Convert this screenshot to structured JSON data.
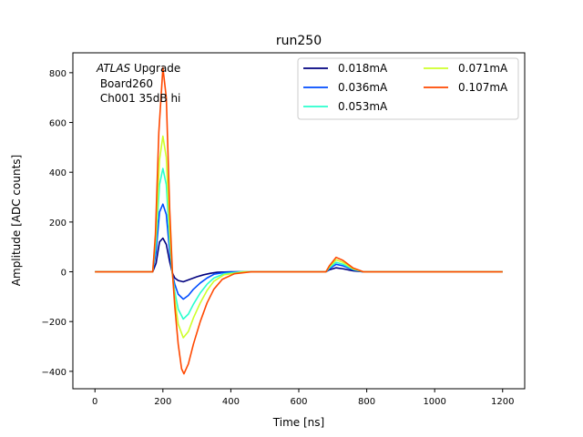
{
  "chart_data": {
    "type": "line",
    "title": "run250",
    "xlabel": "Time [ns]",
    "ylabel": "Amplitude [ADC counts]",
    "xlim": [
      -65,
      1265
    ],
    "ylim": [
      -470,
      880
    ],
    "xticks": [
      0,
      200,
      400,
      600,
      800,
      1000,
      1200
    ],
    "yticks": [
      -400,
      -200,
      0,
      200,
      400,
      600,
      800
    ],
    "grid": false,
    "legend_position": "top-right",
    "legend_columns": 2,
    "annotation": {
      "italic_part": "ATLAS",
      "rest": " Upgrade",
      "line2": " Board260",
      "line3": " Ch001 35dB hi"
    },
    "series": [
      {
        "name": "0.018mA",
        "color": "#00007f",
        "points": [
          [
            0,
            0
          ],
          [
            170,
            0
          ],
          [
            180,
            35
          ],
          [
            190,
            120
          ],
          [
            200,
            135
          ],
          [
            210,
            110
          ],
          [
            220,
            40
          ],
          [
            228,
            -5
          ],
          [
            235,
            -25
          ],
          [
            245,
            -35
          ],
          [
            260,
            -40
          ],
          [
            280,
            -30
          ],
          [
            300,
            -20
          ],
          [
            320,
            -12
          ],
          [
            340,
            -6
          ],
          [
            360,
            -2
          ],
          [
            400,
            0
          ],
          [
            680,
            0
          ],
          [
            690,
            8
          ],
          [
            710,
            16
          ],
          [
            730,
            12
          ],
          [
            760,
            4
          ],
          [
            790,
            0
          ],
          [
            1200,
            0
          ]
        ]
      },
      {
        "name": "0.036mA",
        "color": "#004cff",
        "points": [
          [
            0,
            0
          ],
          [
            170,
            0
          ],
          [
            180,
            80
          ],
          [
            190,
            240
          ],
          [
            200,
            272
          ],
          [
            210,
            230
          ],
          [
            220,
            80
          ],
          [
            228,
            -10
          ],
          [
            235,
            -50
          ],
          [
            245,
            -90
          ],
          [
            260,
            -110
          ],
          [
            275,
            -95
          ],
          [
            290,
            -70
          ],
          [
            310,
            -45
          ],
          [
            330,
            -25
          ],
          [
            350,
            -10
          ],
          [
            380,
            -3
          ],
          [
            420,
            0
          ],
          [
            680,
            0
          ],
          [
            690,
            12
          ],
          [
            710,
            30
          ],
          [
            730,
            24
          ],
          [
            760,
            8
          ],
          [
            790,
            0
          ],
          [
            1200,
            0
          ]
        ]
      },
      {
        "name": "0.053mA",
        "color": "#29ffce",
        "points": [
          [
            0,
            0
          ],
          [
            170,
            0
          ],
          [
            180,
            120
          ],
          [
            190,
            350
          ],
          [
            200,
            415
          ],
          [
            210,
            350
          ],
          [
            220,
            120
          ],
          [
            228,
            -10
          ],
          [
            235,
            -80
          ],
          [
            245,
            -150
          ],
          [
            260,
            -190
          ],
          [
            275,
            -170
          ],
          [
            290,
            -130
          ],
          [
            310,
            -85
          ],
          [
            330,
            -50
          ],
          [
            350,
            -25
          ],
          [
            380,
            -8
          ],
          [
            430,
            0
          ],
          [
            680,
            0
          ],
          [
            690,
            16
          ],
          [
            710,
            38
          ],
          [
            730,
            30
          ],
          [
            760,
            10
          ],
          [
            790,
            0
          ],
          [
            1200,
            0
          ]
        ]
      },
      {
        "name": "0.071mA",
        "color": "#ceff29",
        "points": [
          [
            0,
            0
          ],
          [
            170,
            0
          ],
          [
            180,
            160
          ],
          [
            190,
            450
          ],
          [
            200,
            545
          ],
          [
            210,
            460
          ],
          [
            220,
            160
          ],
          [
            228,
            -10
          ],
          [
            235,
            -110
          ],
          [
            245,
            -210
          ],
          [
            260,
            -265
          ],
          [
            275,
            -240
          ],
          [
            290,
            -185
          ],
          [
            310,
            -125
          ],
          [
            330,
            -75
          ],
          [
            350,
            -38
          ],
          [
            380,
            -12
          ],
          [
            440,
            0
          ],
          [
            680,
            0
          ],
          [
            690,
            20
          ],
          [
            710,
            48
          ],
          [
            730,
            38
          ],
          [
            760,
            12
          ],
          [
            790,
            0
          ],
          [
            1200,
            0
          ]
        ]
      },
      {
        "name": "0.107mA",
        "color": "#ff4800",
        "points": [
          [
            0,
            0
          ],
          [
            170,
            0
          ],
          [
            178,
            150
          ],
          [
            188,
            560
          ],
          [
            200,
            820
          ],
          [
            210,
            700
          ],
          [
            220,
            250
          ],
          [
            228,
            0
          ],
          [
            235,
            -140
          ],
          [
            245,
            -290
          ],
          [
            255,
            -390
          ],
          [
            262,
            -410
          ],
          [
            275,
            -370
          ],
          [
            290,
            -290
          ],
          [
            310,
            -200
          ],
          [
            330,
            -125
          ],
          [
            350,
            -70
          ],
          [
            375,
            -30
          ],
          [
            410,
            -8
          ],
          [
            460,
            0
          ],
          [
            680,
            0
          ],
          [
            690,
            24
          ],
          [
            710,
            58
          ],
          [
            730,
            46
          ],
          [
            760,
            15
          ],
          [
            790,
            0
          ],
          [
            1200,
            0
          ]
        ]
      }
    ]
  }
}
